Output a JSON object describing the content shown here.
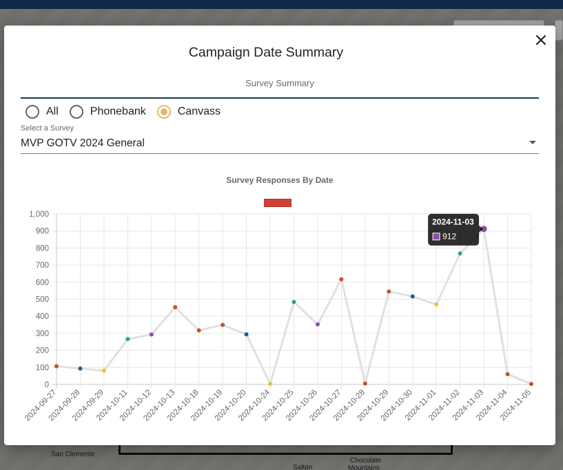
{
  "background": {
    "map_labels": [
      "San Clemente",
      "Chocolate",
      "Mountains",
      "Salton"
    ]
  },
  "modal": {
    "title": "Campaign Date Summary",
    "tab": "Survey Summary",
    "radios": [
      {
        "label": "All",
        "checked": false
      },
      {
        "label": "Phonebank",
        "checked": false
      },
      {
        "label": "Canvass",
        "checked": true
      }
    ],
    "select": {
      "caption": "Select a Survey",
      "value": "MVP GOTV 2024 General"
    }
  },
  "colors": {
    "accent": "#e8b56a",
    "tab_underline": "#1d3a55",
    "legend": "#cf4135",
    "line": "#e0e0e0"
  },
  "chart_data": {
    "type": "line",
    "title": "Survey Responses By Date",
    "xlabel": "",
    "ylabel": "",
    "ylim": [
      0,
      1000
    ],
    "y_ticks": [
      0,
      100,
      200,
      300,
      400,
      500,
      600,
      700,
      800,
      900,
      1000
    ],
    "y_tick_labels": [
      "0",
      "100",
      "200",
      "300",
      "400",
      "500",
      "600",
      "700",
      "800",
      "900",
      "1,000"
    ],
    "grid": true,
    "legend": "top-center",
    "categories": [
      "2024-09-27",
      "2024-09-28",
      "2024-09-29",
      "2024-10-11",
      "2024-10-12",
      "2024-10-13",
      "2024-10-18",
      "2024-10-19",
      "2024-10-20",
      "2024-10-24",
      "2024-10-25",
      "2024-10-26",
      "2024-10-27",
      "2024-10-28",
      "2024-10-29",
      "2024-10-30",
      "2024-11-01",
      "2024-11-02",
      "2024-11-03",
      "2024-11-04",
      "2024-11-05"
    ],
    "series": [
      {
        "values": [
          107,
          93,
          81,
          266,
          293,
          453,
          317,
          349,
          294,
          3,
          484,
          352,
          617,
          5,
          545,
          516,
          469,
          768,
          912,
          60,
          3
        ],
        "point_colors": [
          "#c5522a",
          "#1e5e8c",
          "#ecc32b",
          "#2ea866",
          "#8c4fa6",
          "#c5522a",
          "#c5522a",
          "#c5522a",
          "#1e5e8c",
          "#ecc32b",
          "#2ea866",
          "#8c4fa6",
          "#c5522a",
          "#c5522a",
          "#c5522a",
          "#1e5e8c",
          "#ecc32b",
          "#2ea866",
          "#8c4fa6",
          "#c5522a",
          "#c5522a"
        ]
      }
    ],
    "tooltip": {
      "title": "2024-11-03",
      "value": "912",
      "color": "#8c4fa6"
    }
  }
}
